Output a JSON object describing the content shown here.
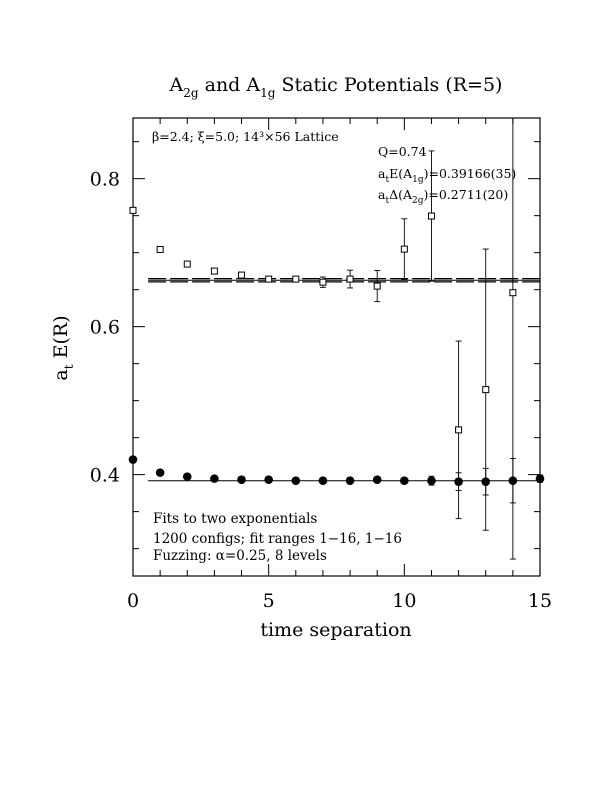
{
  "chart_data": {
    "type": "scatter",
    "title": "A₂g and A₁g Static Potentials (R=5)",
    "title_parts": {
      "a": "A",
      "s1": "2g",
      "mid": " and A",
      "s2": "1g",
      "rest": " Static Potentials (R=5)"
    },
    "xlabel": "time separation",
    "ylabel_parts": {
      "a": "a",
      "sub": "t",
      "rest": " E(R)"
    },
    "xlim": [
      0,
      15
    ],
    "ylim": [
      0.263,
      0.882
    ],
    "x_major_ticks": [
      0,
      5,
      10,
      15
    ],
    "y_major_ticks": [
      0.4,
      0.6,
      0.8
    ],
    "x_tick_labels": [
      "0",
      "5",
      "10",
      "15"
    ],
    "y_tick_labels": [
      "0.4",
      "0.6",
      "0.8"
    ],
    "x_minor_step": 1,
    "y_minor_step": 0.05,
    "lattice_note": "β=2.4; ξ=5.0; 14³×56 Lattice",
    "stats": {
      "q": "Q=0.74",
      "e_a": "a",
      "e_sub": "t",
      "e_mid": "E(A",
      "e_sub2": "1g",
      "e_rest": ")=0.39166(35)",
      "d_a": "a",
      "d_sub": "t",
      "d_mid": "Δ(A",
      "d_sub2": "2g",
      "d_rest": ")=0.2711(20)"
    },
    "notes": [
      "Fits to two exponentials",
      "1200 configs; fit ranges 1−16, 1−16",
      "Fuzzing: α=0.25, 8 levels"
    ],
    "series": [
      {
        "name": "A2g",
        "marker": "open-square",
        "points": [
          {
            "x": 0,
            "y": 0.7572,
            "err": 0.003
          },
          {
            "x": 1,
            "y": 0.7043,
            "err": 0.003
          },
          {
            "x": 2,
            "y": 0.6846,
            "err": 0.003
          },
          {
            "x": 3,
            "y": 0.6751,
            "err": 0.003
          },
          {
            "x": 4,
            "y": 0.6697,
            "err": 0.003
          },
          {
            "x": 5,
            "y": 0.6643,
            "err": 0.003
          },
          {
            "x": 6,
            "y": 0.6643,
            "err": 0.004
          },
          {
            "x": 7,
            "y": 0.6601,
            "err": 0.007
          },
          {
            "x": 8,
            "y": 0.6643,
            "err": 0.012
          },
          {
            "x": 9,
            "y": 0.6548,
            "err": 0.021
          },
          {
            "x": 10,
            "y": 0.7048,
            "err": 0.041
          },
          {
            "x": 11,
            "y": 0.7495,
            "err": 0.088
          },
          {
            "x": 12,
            "y": 0.4605,
            "err": 0.12
          },
          {
            "x": 13,
            "y": 0.5149,
            "err": 0.19
          },
          {
            "x": 14,
            "y": 0.6459,
            "err": 0.36
          }
        ],
        "fit": {
          "y": 0.66276,
          "band": 0.0022,
          "x_range": [
            1,
            15
          ]
        }
      },
      {
        "name": "A1g",
        "marker": "filled-circle",
        "points": [
          {
            "x": 0,
            "y": 0.4204,
            "err": 0.0005
          },
          {
            "x": 1,
            "y": 0.4027,
            "err": 0.0005
          },
          {
            "x": 2,
            "y": 0.3973,
            "err": 0.0005
          },
          {
            "x": 3,
            "y": 0.3946,
            "err": 0.0005
          },
          {
            "x": 4,
            "y": 0.3932,
            "err": 0.0005
          },
          {
            "x": 5,
            "y": 0.3932,
            "err": 0.0006
          },
          {
            "x": 6,
            "y": 0.3918,
            "err": 0.0008
          },
          {
            "x": 7,
            "y": 0.3918,
            "err": 0.0012
          },
          {
            "x": 8,
            "y": 0.3918,
            "err": 0.002
          },
          {
            "x": 9,
            "y": 0.3932,
            "err": 0.003
          },
          {
            "x": 10,
            "y": 0.3918,
            "err": 0.004
          },
          {
            "x": 11,
            "y": 0.3918,
            "err": 0.006
          },
          {
            "x": 12,
            "y": 0.3905,
            "err": 0.012
          },
          {
            "x": 13,
            "y": 0.3905,
            "err": 0.018
          },
          {
            "x": 14,
            "y": 0.3918,
            "err": 0.03
          },
          {
            "x": 15,
            "y": 0.3946,
            "err": 0.005
          }
        ],
        "fit": {
          "y": 0.39166,
          "x_range": [
            1,
            15
          ]
        }
      }
    ]
  }
}
